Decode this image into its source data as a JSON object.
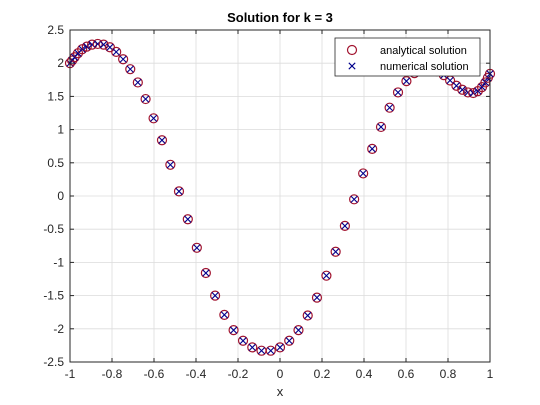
{
  "chart_data": {
    "type": "scatter",
    "title": "Solution for k = 3",
    "xlabel": "x",
    "ylabel": "",
    "xlim": [
      -1,
      1
    ],
    "ylim": [
      -2.5,
      2.5
    ],
    "xticks": [
      -1,
      -0.8,
      -0.6,
      -0.4,
      -0.2,
      0,
      0.2,
      0.4,
      0.6,
      0.8,
      1
    ],
    "xtick_labels": [
      "-1",
      "-0.8",
      "-0.6",
      "-0.4",
      "-0.2",
      "0",
      "0.2",
      "0.4",
      "0.6",
      "0.8",
      "1"
    ],
    "yticks": [
      -2.5,
      -2,
      -1.5,
      -1,
      -0.5,
      0,
      0.5,
      1,
      1.5,
      2,
      2.5
    ],
    "ytick_labels": [
      "-2.5",
      "-2",
      "-1.5",
      "-1",
      "-0.5",
      "0",
      "0.5",
      "1",
      "1.5",
      "2",
      "2.5"
    ],
    "grid": true,
    "legend_position": "top-right",
    "x": [
      -1.0,
      -0.99,
      -0.978,
      -0.962,
      -0.942,
      -0.92,
      -0.895,
      -0.868,
      -0.84,
      -0.81,
      -0.78,
      -0.747,
      -0.713,
      -0.677,
      -0.64,
      -0.602,
      -0.562,
      -0.522,
      -0.481,
      -0.439,
      -0.396,
      -0.353,
      -0.309,
      -0.265,
      -0.221,
      -0.176,
      -0.132,
      -0.088,
      -0.044,
      0.0,
      0.044,
      0.088,
      0.132,
      0.176,
      0.221,
      0.265,
      0.309,
      0.353,
      0.396,
      0.439,
      0.481,
      0.522,
      0.562,
      0.602,
      0.64,
      0.677,
      0.713,
      0.747,
      0.78,
      0.81,
      0.84,
      0.868,
      0.895,
      0.92,
      0.942,
      0.962,
      0.978,
      0.99,
      1.0
    ],
    "y": [
      2.0,
      2.04,
      2.09,
      2.15,
      2.21,
      2.25,
      2.28,
      2.29,
      2.28,
      2.24,
      2.17,
      2.06,
      1.91,
      1.71,
      1.46,
      1.17,
      0.84,
      0.47,
      0.07,
      -0.35,
      -0.78,
      -1.16,
      -1.5,
      -1.79,
      -2.02,
      -2.18,
      -2.28,
      -2.33,
      -2.33,
      -2.28,
      -2.18,
      -2.02,
      -1.8,
      -1.53,
      -1.2,
      -0.84,
      -0.45,
      -0.05,
      0.34,
      0.71,
      1.04,
      1.33,
      1.56,
      1.73,
      1.85,
      1.91,
      1.92,
      1.88,
      1.82,
      1.74,
      1.66,
      1.6,
      1.56,
      1.55,
      1.58,
      1.64,
      1.71,
      1.78,
      1.84
    ],
    "series": [
      {
        "name": "analytical  solution",
        "marker": "circle",
        "color": "#a2142f"
      },
      {
        "name": "numerical solution",
        "marker": "x",
        "color": "#00008b"
      }
    ]
  }
}
